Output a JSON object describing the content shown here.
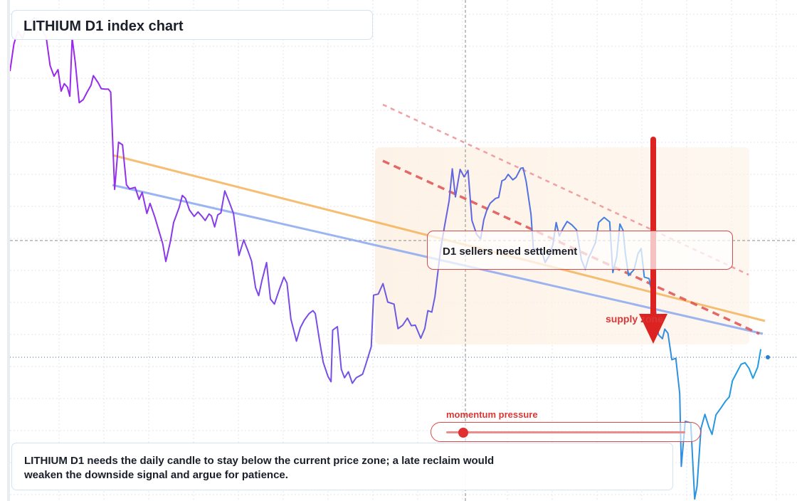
{
  "title": "LITHIUM D1 index chart",
  "callout": "D1 sellers need settlement",
  "supply_label": "supply zone",
  "momentum": {
    "label": "momentum pressure",
    "level": 0.07
  },
  "note": "LITHIUM D1 needs the daily candle to stay below the current price zone; a late reclaim would weaken the downside signal and argue for patience.",
  "colors": {
    "line_start": "#a020f0",
    "line_end": "#1e9fe0",
    "trend_orange": "#f5b35a",
    "trend_blue": "#8aa8f0",
    "bear_red": "#e05050",
    "arrow_red": "#dd2222",
    "zone_fill": "#fdf4ea"
  },
  "chart_data": {
    "type": "line",
    "y_range": [
      0,
      100
    ],
    "x_range": [
      0,
      100
    ],
    "series": [
      {
        "values": [
          [
            0.0,
            85.8
          ],
          [
            0.5,
            91.2
          ],
          [
            1.0,
            93.8
          ],
          [
            1.6,
            92.3
          ],
          [
            2.0,
            94.3
          ],
          [
            2.6,
            95.8
          ],
          [
            3.1,
            96.5
          ],
          [
            3.6,
            95.7
          ],
          [
            4.1,
            94.0
          ],
          [
            4.6,
            92.6
          ],
          [
            5.1,
            86.9
          ],
          [
            5.6,
            84.8
          ],
          [
            6.1,
            86.1
          ],
          [
            6.5,
            81.8
          ],
          [
            6.9,
            83.3
          ],
          [
            7.3,
            82.6
          ],
          [
            7.6,
            80.8
          ],
          [
            7.9,
            92.4
          ],
          [
            8.3,
            87.5
          ],
          [
            8.8,
            79.5
          ],
          [
            9.3,
            80.1
          ],
          [
            9.8,
            81.6
          ],
          [
            10.3,
            83.0
          ],
          [
            10.6,
            84.9
          ],
          [
            11.2,
            83.5
          ],
          [
            11.6,
            82.3
          ],
          [
            12.1,
            82.2
          ],
          [
            12.5,
            82.2
          ],
          [
            12.8,
            81.6
          ],
          [
            13.3,
            62.2
          ],
          [
            13.8,
            71.6
          ],
          [
            14.3,
            71.1
          ],
          [
            14.8,
            63.1
          ],
          [
            15.2,
            62.3
          ],
          [
            15.9,
            62.6
          ],
          [
            16.4,
            60.2
          ],
          [
            16.8,
            61.6
          ],
          [
            17.4,
            57.4
          ],
          [
            17.8,
            59.4
          ],
          [
            18.4,
            56.7
          ],
          [
            19.4,
            51.4
          ],
          [
            19.8,
            47.8
          ],
          [
            20.4,
            51.9
          ],
          [
            20.8,
            55.6
          ],
          [
            21.5,
            58.6
          ],
          [
            21.9,
            61.0
          ],
          [
            22.3,
            60.4
          ],
          [
            22.8,
            58.1
          ],
          [
            23.4,
            56.8
          ],
          [
            23.9,
            57.7
          ],
          [
            24.4,
            56.8
          ],
          [
            24.8,
            56.0
          ],
          [
            25.3,
            57.3
          ],
          [
            25.6,
            56.9
          ],
          [
            26.0,
            54.7
          ],
          [
            26.4,
            57.1
          ],
          [
            26.8,
            57.5
          ],
          [
            27.3,
            61.9
          ],
          [
            27.8,
            59.9
          ],
          [
            28.4,
            57.4
          ],
          [
            29.1,
            49.0
          ],
          [
            29.7,
            52.1
          ],
          [
            30.2,
            50.1
          ],
          [
            30.7,
            47.9
          ],
          [
            31.2,
            42.6
          ],
          [
            31.6,
            41.0
          ],
          [
            32.0,
            43.9
          ],
          [
            32.6,
            47.6
          ],
          [
            33.1,
            40.3
          ],
          [
            33.6,
            39.3
          ],
          [
            34.2,
            42.1
          ],
          [
            34.8,
            44.7
          ],
          [
            35.2,
            43.5
          ],
          [
            35.7,
            36.3
          ],
          [
            36.4,
            31.9
          ],
          [
            36.9,
            34.6
          ],
          [
            37.4,
            36.1
          ],
          [
            38.0,
            37.4
          ],
          [
            38.5,
            38.0
          ],
          [
            38.8,
            37.4
          ],
          [
            39.3,
            32.3
          ],
          [
            39.8,
            27.7
          ],
          [
            40.4,
            24.9
          ],
          [
            40.8,
            23.8
          ],
          [
            41.0,
            34.1
          ],
          [
            41.6,
            34.8
          ],
          [
            42.1,
            26.3
          ],
          [
            42.5,
            24.6
          ],
          [
            43.0,
            25.8
          ],
          [
            43.5,
            23.5
          ],
          [
            44.0,
            24.6
          ],
          [
            44.8,
            25.3
          ],
          [
            45.2,
            27.2
          ],
          [
            45.9,
            30.8
          ],
          [
            46.2,
            41.1
          ],
          [
            46.8,
            41.3
          ],
          [
            47.4,
            43.4
          ],
          [
            48.0,
            39.7
          ],
          [
            48.8,
            39.3
          ],
          [
            49.3,
            34.4
          ],
          [
            49.9,
            35.1
          ],
          [
            50.5,
            36.5
          ],
          [
            51.0,
            35.0
          ],
          [
            51.5,
            35.1
          ],
          [
            52.2,
            32.5
          ],
          [
            52.7,
            34.4
          ],
          [
            53.1,
            38.0
          ],
          [
            53.6,
            37.7
          ],
          [
            54.0,
            40.8
          ],
          [
            54.7,
            50.0
          ],
          [
            55.2,
            54.7
          ],
          [
            55.8,
            59.9
          ],
          [
            56.2,
            66.3
          ],
          [
            56.6,
            60.7
          ],
          [
            57.2,
            66.2
          ],
          [
            57.7,
            64.7
          ],
          [
            58.2,
            66.0
          ],
          [
            58.7,
            56.0
          ],
          [
            59.3,
            53.2
          ],
          [
            59.8,
            52.3
          ],
          [
            60.2,
            56.1
          ],
          [
            60.6,
            58.1
          ],
          [
            61.0,
            59.4
          ],
          [
            61.7,
            60.4
          ],
          [
            62.1,
            60.6
          ],
          [
            62.5,
            63.9
          ],
          [
            62.9,
            64.2
          ],
          [
            63.3,
            65.2
          ],
          [
            63.9,
            64.1
          ],
          [
            64.3,
            64.6
          ],
          [
            64.9,
            66.4
          ],
          [
            65.2,
            66.5
          ],
          [
            65.6,
            63.7
          ],
          [
            66.2,
            57.2
          ],
          [
            66.5,
            50.3
          ],
          [
            67.3,
            50.2
          ],
          [
            67.6,
            49.7
          ],
          [
            68.0,
            47.6
          ],
          [
            68.6,
            49.2
          ],
          [
            69.0,
            51.3
          ],
          [
            69.4,
            55.6
          ],
          [
            69.8,
            52.9
          ],
          [
            70.3,
            54.5
          ],
          [
            70.8,
            55.8
          ],
          [
            71.4,
            55.1
          ],
          [
            72.0,
            54.1
          ],
          [
            72.6,
            48.2
          ],
          [
            73.1,
            46.2
          ],
          [
            73.5,
            48.5
          ],
          [
            73.9,
            49.8
          ],
          [
            74.4,
            51.6
          ],
          [
            74.8,
            55.6
          ],
          [
            75.5,
            56.6
          ],
          [
            76.2,
            55.7
          ],
          [
            76.6,
            45.6
          ],
          [
            77.1,
            48.8
          ],
          [
            77.5,
            55.3
          ],
          [
            77.9,
            54.0
          ],
          [
            78.2,
            49.3
          ],
          [
            78.6,
            45.0
          ],
          [
            79.3,
            46.2
          ],
          [
            79.8,
            49.4
          ],
          [
            80.2,
            50.4
          ],
          [
            80.6,
            44.7
          ],
          [
            81.2,
            44.4
          ],
          [
            81.5,
            42.1
          ],
          [
            81.9,
            39.6
          ],
          [
            82.4,
            33.2
          ],
          [
            82.9,
            32.4
          ],
          [
            83.2,
            34.3
          ],
          [
            83.6,
            33.5
          ],
          [
            84.1,
            28.2
          ],
          [
            84.6,
            28.5
          ],
          [
            85.1,
            21.4
          ],
          [
            85.3,
            6.9
          ],
          [
            85.8,
            15.9
          ],
          [
            86.5,
            15.6
          ],
          [
            87.0,
            0.4
          ],
          [
            87.3,
            2.9
          ],
          [
            87.8,
            14.5
          ],
          [
            88.3,
            17.3
          ],
          [
            88.8,
            14.8
          ],
          [
            89.2,
            13.3
          ],
          [
            89.7,
            17.2
          ],
          [
            90.3,
            18.5
          ],
          [
            90.9,
            19.9
          ],
          [
            91.4,
            20.8
          ],
          [
            91.8,
            24.0
          ],
          [
            92.4,
            25.8
          ],
          [
            92.9,
            27.3
          ],
          [
            93.4,
            27.6
          ],
          [
            93.9,
            26.5
          ],
          [
            94.4,
            24.5
          ],
          [
            95.0,
            26.7
          ],
          [
            95.4,
            30.3
          ]
        ]
      }
    ]
  }
}
